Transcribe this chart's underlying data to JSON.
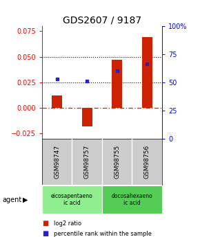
{
  "title": "GDS2607 / 9187",
  "samples": [
    "GSM98747",
    "GSM98757",
    "GSM98755",
    "GSM98756"
  ],
  "log2_ratios": [
    0.012,
    -0.018,
    0.047,
    0.069
  ],
  "percentile_ranks": [
    0.028,
    0.026,
    0.036,
    0.043
  ],
  "agent_groups": [
    {
      "label": "eicosapentaeno\nic acid",
      "color": "#90EE90",
      "samples": [
        0,
        1
      ]
    },
    {
      "label": "docosahexaeno\nic acid",
      "color": "#55CC55",
      "samples": [
        2,
        3
      ]
    }
  ],
  "ylim": [
    -0.03,
    0.08
  ],
  "yticks_left": [
    -0.025,
    0.0,
    0.025,
    0.05,
    0.075
  ],
  "yticks_right_pct": [
    0,
    25,
    50,
    75,
    100
  ],
  "bar_color": "#CC2200",
  "dot_color": "#2222CC",
  "hline_color": "#CC2200",
  "hline_style": "-.",
  "dotted_color": "#000000",
  "background_color": "#ffffff",
  "sample_bg": "#cccccc",
  "title_fontsize": 10,
  "tick_fontsize": 7,
  "legend_label_log2": "log2 ratio",
  "legend_label_pct": "percentile rank within the sample",
  "bar_width": 0.35
}
